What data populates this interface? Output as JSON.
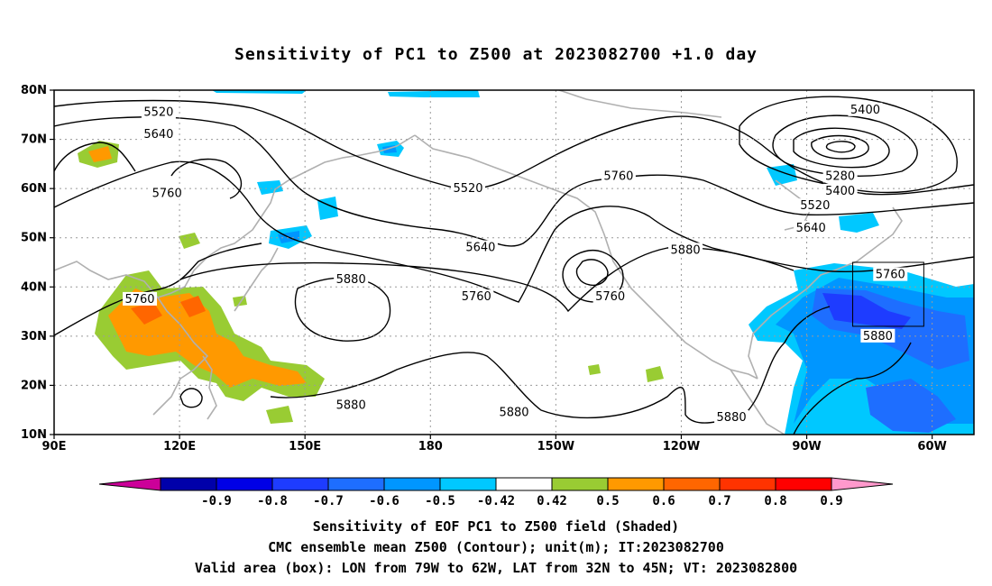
{
  "title": "Sensitivity of PC1 to Z500 at 2023082700 +1.0 day",
  "lat_labels": [
    "80N",
    "70N",
    "60N",
    "50N",
    "40N",
    "30N",
    "20N",
    "10N"
  ],
  "lon_labels": [
    "90E",
    "120E",
    "150E",
    "180",
    "150W",
    "120W",
    "90W",
    "60W"
  ],
  "contour_labels": [
    {
      "text": "5520",
      "lon": 115,
      "lat": 75.5
    },
    {
      "text": "5640",
      "lon": 115,
      "lat": 71
    },
    {
      "text": "5760",
      "lon": 117,
      "lat": 59
    },
    {
      "text": "5760",
      "lon": 110.5,
      "lat": 37.5
    },
    {
      "text": "5880",
      "lon": 161,
      "lat": 41.5
    },
    {
      "text": "5880",
      "lon": 161,
      "lat": 16
    },
    {
      "text": "5520",
      "lon": 189,
      "lat": 60
    },
    {
      "text": "5640",
      "lon": 192,
      "lat": 48
    },
    {
      "text": "5760",
      "lon": 191,
      "lat": 38
    },
    {
      "text": "5760",
      "lon": 225,
      "lat": 62.5
    },
    {
      "text": "5760",
      "lon": 223,
      "lat": 38
    },
    {
      "text": "5880",
      "lon": 241,
      "lat": 47.5
    },
    {
      "text": "5880",
      "lon": 200,
      "lat": 14.5
    },
    {
      "text": "5880",
      "lon": 252,
      "lat": 13.5
    },
    {
      "text": "5400",
      "lon": 284,
      "lat": 76
    },
    {
      "text": "5280",
      "lon": 278,
      "lat": 62.5
    },
    {
      "text": "5400",
      "lon": 278,
      "lat": 59.5
    },
    {
      "text": "5520",
      "lon": 272,
      "lat": 56.5
    },
    {
      "text": "5640",
      "lon": 271,
      "lat": 52
    },
    {
      "text": "5760",
      "lon": 290,
      "lat": 42.5
    },
    {
      "text": "5880",
      "lon": 287,
      "lat": 30
    }
  ],
  "colorbar": {
    "labels": [
      "-0.9",
      "-0.8",
      "-0.7",
      "-0.6",
      "-0.5",
      "-0.42",
      "0.42",
      "0.5",
      "0.6",
      "0.7",
      "0.8",
      "0.9"
    ],
    "colors": [
      "#cc0099",
      "#0000aa",
      "#0000e6",
      "#1e3cff",
      "#1e6eff",
      "#0096ff",
      "#00c8ff",
      "#ffffff",
      "#99cc33",
      "#ff9900",
      "#ff6600",
      "#ff3300",
      "#ff0000",
      "#ff99cc"
    ]
  },
  "valid_box": {
    "lon_min": 281,
    "lon_max": 298,
    "lat_min": 32,
    "lat_max": 45
  },
  "caption": {
    "line1": "Sensitivity of EOF PC1 to Z500 field (Shaded)",
    "line2": "CMC ensemble mean Z500 (Contour); unit(m); IT:2023082700",
    "line3": "Valid area (box): LON from 79W to 62W, LAT from 32N to 45N; VT: 2023082800"
  }
}
